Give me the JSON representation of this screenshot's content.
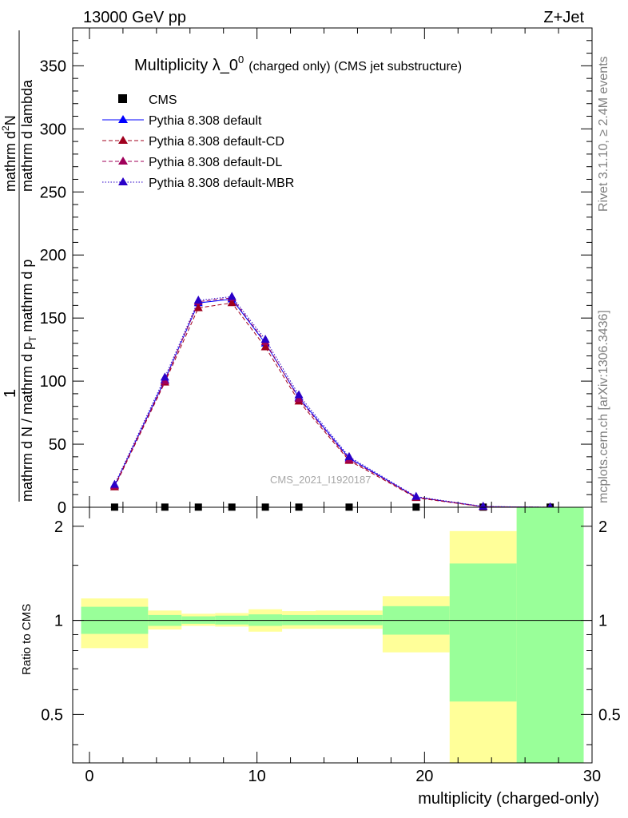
{
  "header": {
    "energy": "13000 GeV pp",
    "process": "Z+Jet"
  },
  "side_labels": {
    "rivet": "Rivet 3.1.10, ≥ 2.4M events",
    "mcplots": "mcplots.cern.ch [arXiv:1306.3436]"
  },
  "watermark": "CMS_2021_I1920187",
  "chart_data": [
    {
      "type": "line",
      "title_main": "Multiplicity λ_0",
      "title_sup": "0",
      "title_rest": "(charged only) (CMS jet substructure)",
      "ylabel_1": "1",
      "ylabel_2": "mathrm d N / mathrm d p",
      "ylabel_2_sub": "T",
      "ylabel_2_rest": " mathrm d p",
      "ylabel_3": "mathrm d",
      "ylabel_3_sup": "2",
      "ylabel_3_rest": "N",
      "ylabel_4": "mathrm d lambda",
      "xlim": [
        -1,
        30
      ],
      "ylim": [
        0,
        380
      ],
      "yticks": [
        0,
        50,
        100,
        150,
        200,
        250,
        300,
        350
      ],
      "ytick_labels": [
        "0",
        "50",
        "100",
        "150",
        "200",
        "250",
        "300",
        "350"
      ],
      "legend": [
        "CMS",
        "Pythia 8.308 default",
        "Pythia 8.308 default-CD",
        "Pythia 8.308 default-DL",
        "Pythia 8.308 default-MBR"
      ],
      "legend_position": "top-left",
      "series": [
        {
          "name": "CMS",
          "x": [
            1.5,
            4.5,
            6.5,
            8.5,
            10.5,
            12.5,
            15.5,
            19.5,
            23.5,
            27.5
          ],
          "values": [
            0.1,
            0.1,
            0.1,
            0.1,
            0.1,
            0.1,
            0.1,
            0.1,
            0.1,
            0.1
          ],
          "color": "#000000",
          "style": "marker"
        },
        {
          "name": "Pythia 8.308 default",
          "x": [
            1.5,
            4.5,
            6.5,
            8.5,
            10.5,
            12.5,
            15.5,
            19.5,
            23.5,
            27.5
          ],
          "values": [
            17,
            101,
            162,
            165,
            130,
            87,
            39,
            8,
            0.5,
            0.03
          ],
          "color": "#0000ff",
          "style": "solid"
        },
        {
          "name": "Pythia 8.308 default-CD",
          "x": [
            1.5,
            4.5,
            6.5,
            8.5,
            10.5,
            12.5,
            15.5,
            19.5,
            23.5,
            27.5
          ],
          "values": [
            16,
            99,
            158,
            162,
            127,
            84,
            37,
            7.5,
            0.4,
            0.03
          ],
          "color": "#a0001e",
          "style": "dashed"
        },
        {
          "name": "Pythia 8.308 default-DL",
          "x": [
            1.5,
            4.5,
            6.5,
            8.5,
            10.5,
            12.5,
            15.5,
            19.5,
            23.5,
            27.5
          ],
          "values": [
            17,
            100,
            163,
            166,
            131,
            86,
            38,
            8,
            0.5,
            0.03
          ],
          "color": "#a0005a",
          "style": "dashed"
        },
        {
          "name": "Pythia 8.308 default-MBR",
          "x": [
            1.5,
            4.5,
            6.5,
            8.5,
            10.5,
            12.5,
            15.5,
            19.5,
            23.5,
            27.5
          ],
          "values": [
            18,
            103,
            164,
            167,
            133,
            89,
            40,
            8.5,
            0.6,
            0.03
          ],
          "color": "#2a00c8",
          "style": "dotted"
        }
      ]
    },
    {
      "type": "area",
      "ylabel": "Ratio to CMS",
      "xlabel": "multiplicity (charged-only)",
      "xlim": [
        -1,
        30
      ],
      "ylim": [
        0.35,
        2.3
      ],
      "log_y": true,
      "yticks": [
        0.5,
        1,
        2
      ],
      "ytick_labels": [
        "0.5",
        "1",
        "2"
      ],
      "xticks": [
        0,
        10,
        20,
        30
      ],
      "xtick_labels": [
        "0",
        "10",
        "20",
        "30"
      ],
      "reference_line": 1,
      "bins": [
        {
          "lo": -0.5,
          "hi": 3.5,
          "green": [
            0.905,
            1.105
          ],
          "yellow": [
            0.815,
            1.175
          ]
        },
        {
          "lo": 3.5,
          "hi": 5.5,
          "green": [
            0.96,
            1.04
          ],
          "yellow": [
            0.935,
            1.075
          ]
        },
        {
          "lo": 5.5,
          "hi": 7.5,
          "green": [
            0.975,
            1.03
          ],
          "yellow": [
            0.96,
            1.05
          ]
        },
        {
          "lo": 7.5,
          "hi": 9.5,
          "green": [
            0.97,
            1.035
          ],
          "yellow": [
            0.955,
            1.055
          ]
        },
        {
          "lo": 9.5,
          "hi": 11.5,
          "green": [
            0.96,
            1.045
          ],
          "yellow": [
            0.92,
            1.085
          ]
        },
        {
          "lo": 11.5,
          "hi": 13.5,
          "green": [
            0.965,
            1.04
          ],
          "yellow": [
            0.94,
            1.07
          ]
        },
        {
          "lo": 13.5,
          "hi": 17.5,
          "green": [
            0.965,
            1.04
          ],
          "yellow": [
            0.94,
            1.075
          ]
        },
        {
          "lo": 17.5,
          "hi": 21.5,
          "green": [
            0.9,
            1.11
          ],
          "yellow": [
            0.79,
            1.195
          ]
        },
        {
          "lo": 21.5,
          "hi": 25.5,
          "green": [
            0.55,
            1.52
          ],
          "yellow": [
            0.35,
            1.93
          ]
        },
        {
          "lo": 25.5,
          "hi": 29.5,
          "green": [
            0.35,
            2.3
          ],
          "yellow": [
            0.35,
            2.3
          ]
        }
      ]
    }
  ]
}
